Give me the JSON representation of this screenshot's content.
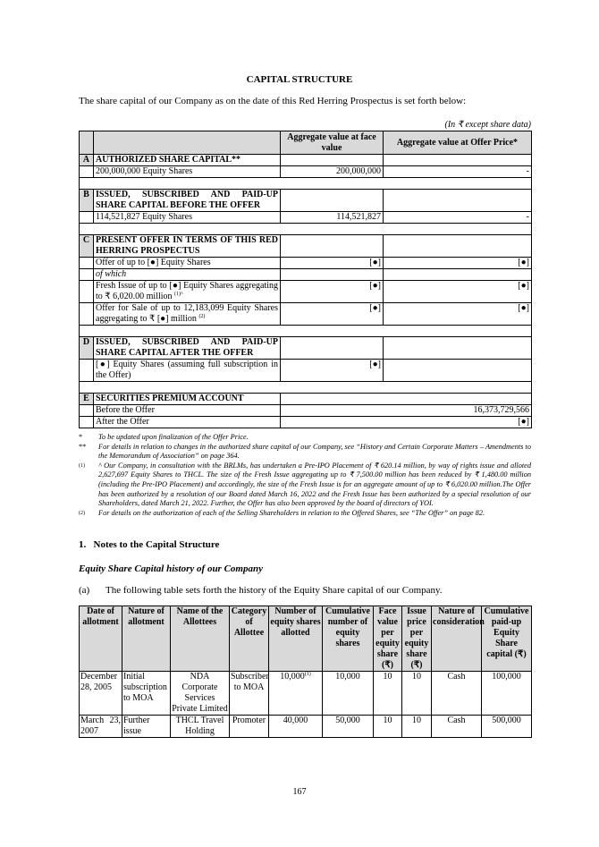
{
  "title": "CAPITAL STRUCTURE",
  "intro": "The share capital of our Company as on the date of this Red Herring Prospectus is set forth below:",
  "units": "(In ₹ except share data)",
  "capital_table": {
    "headers": [
      "",
      "",
      "Aggregate value at face value",
      "Aggregate value at Offer Price*"
    ],
    "A": {
      "letter": "A",
      "heading": "AUTHORIZED SHARE CAPITAL**",
      "row": {
        "desc": "200,000,000 Equity Shares",
        "face": "200,000,000",
        "offer": "-"
      }
    },
    "B": {
      "letter": "B",
      "heading": "ISSUED, SUBSCRIBED AND PAID-UP SHARE CAPITAL BEFORE THE OFFER",
      "row": {
        "desc": "114,521,827 Equity Shares",
        "face": "114,521,827",
        "offer": "-"
      }
    },
    "C": {
      "letter": "C",
      "heading": "PRESENT OFFER IN TERMS OF THIS RED HERRING PROSPECTUS",
      "rows": [
        {
          "desc": "Offer of up to [●] Equity Shares",
          "face": "[●]",
          "offer": "[●]"
        },
        {
          "desc": "of which"
        },
        {
          "desc": "Fresh Issue of up to [●] Equity Shares aggregating to ₹ 6,020.00 million",
          "sup": "(1)^",
          "face": "[●]",
          "offer": "[●]"
        },
        {
          "desc": "Offer for Sale of up to 12,183,099 Equity Shares aggregating to ₹ [●] million",
          "sup": "(2)",
          "face": "[●]",
          "offer": "[●]"
        }
      ]
    },
    "D": {
      "letter": "D",
      "heading": "ISSUED, SUBSCRIBED AND PAID-UP SHARE CAPITAL AFTER THE OFFER",
      "row": {
        "desc": "[●] Equity Shares (assuming full subscription in the Offer)",
        "face": "[●]"
      }
    },
    "E": {
      "letter": "E",
      "heading": "SECURITIES PREMIUM ACCOUNT",
      "rows": [
        {
          "desc": "Before the Offer",
          "value": "16,373,729,566"
        },
        {
          "desc": "After the Offer",
          "value": "[●]"
        }
      ]
    }
  },
  "footnotes": [
    {
      "mark": "*",
      "text": "To be updated upon finalization of the Offer Price."
    },
    {
      "mark": "**",
      "text": "For details in relation to changes in the authorized share capital of our Company, see “History and Certain Corporate Matters – Amendments to the Memorandum of Association” on page 364."
    },
    {
      "mark": "(1)",
      "text": "^    Our Company, in consultation with the BRLMs, has undertaken a Pre-IPO Placement of ₹ 620.14 million, by way of rights issue and alloted 2,627,697 Equity Shares to THCL. The size of the Fresh Issue aggregating up to ₹ 7,500.00 million has been reduced by ₹ 1,480.00 million (including the Pre-IPO Placement) and accordingly, the size of the Fresh Issue is for an aggregate amount of up to ₹ 6,020.00 million.The Offer has been authorized by a resolution of our Board dated March 16, 2022 and the Fresh Issue has been authorized by a special resolution of our Shareholders, dated March 21, 2022. Further, the Offer has also been approved by the board of directors of YOI."
    },
    {
      "mark": "(2)",
      "text": "For details on the authorization of each of the Selling Shareholders in relation to the Offered Shares, see “The Offer” on page 82."
    }
  ],
  "notes_heading": "1.   Notes to the Capital Structure",
  "history_heading": "Equity Share Capital history of our Company",
  "para_a": {
    "label": "(a)",
    "text": "The following table sets forth the history of the Equity Share capital of our Company."
  },
  "history_table": {
    "headers": [
      "Date of allotment",
      "Nature of allotment",
      "Name of the Allottees",
      "Category of Allottee",
      "Number of equity shares allotted",
      "Cumulative number of equity shares",
      "Face value per equity share (₹)",
      "Issue price per equity share (₹)",
      "Nature of consideration",
      "Cumulative paid-up Equity Share capital (₹)"
    ],
    "rows": [
      {
        "date": "December 28, 2005",
        "nature": "Initial subscription to MOA",
        "allottees": "NDA Corporate Services Private Limited",
        "category": "Subscriber to MOA",
        "shares": "10,000",
        "shares_sup": "(1)",
        "cumulative": "10,000",
        "face": "10",
        "issue": "10",
        "consideration": "Cash",
        "capital": "100,000"
      },
      {
        "date": "March 23, 2007",
        "nature": "Further issue",
        "allottees": "THCL Travel Holding",
        "category": "Promoter",
        "shares": "40,000",
        "cumulative": "50,000",
        "face": "10",
        "issue": "10",
        "consideration": "Cash",
        "capital": "500,000"
      }
    ]
  },
  "page_number": "167"
}
